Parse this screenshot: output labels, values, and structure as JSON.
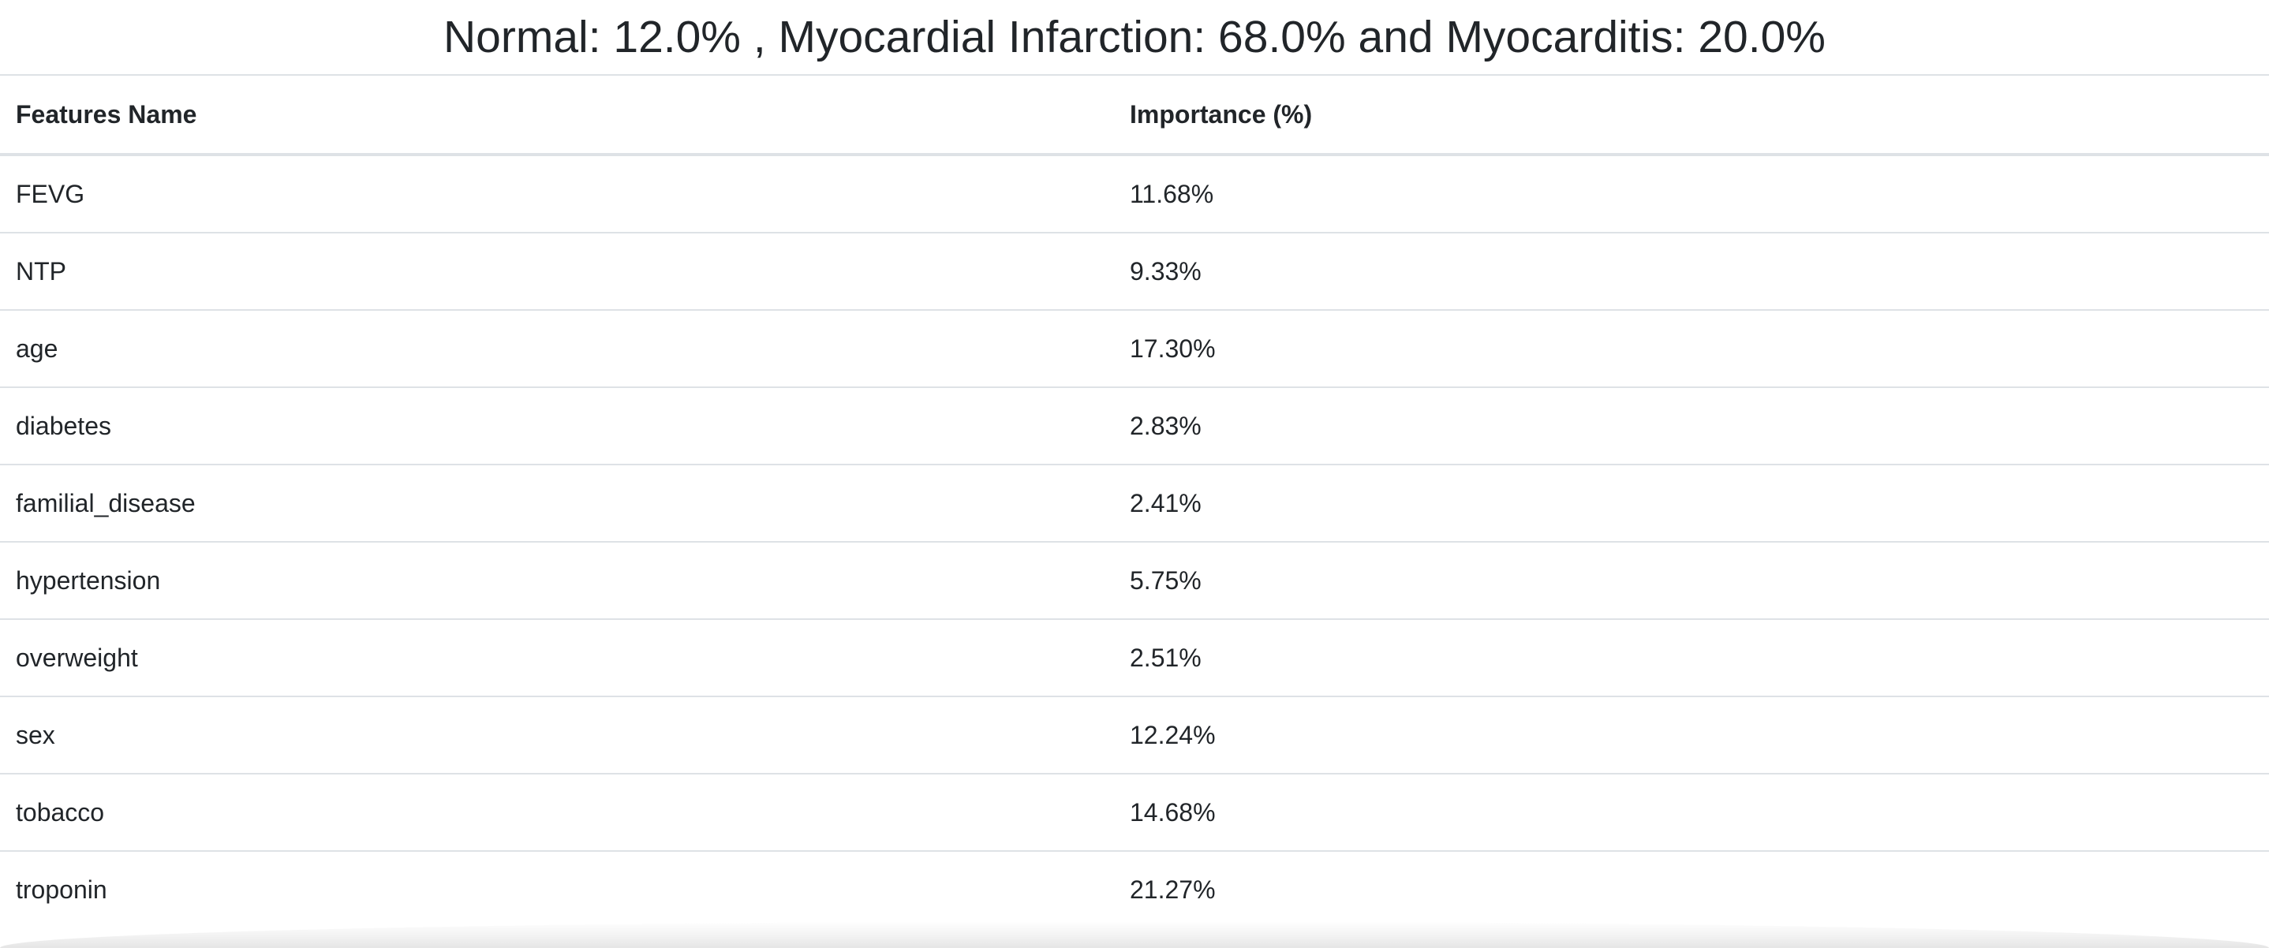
{
  "result_title": "Normal: 12.0% , Myocardial Infarction: 68.0% and Myocarditis: 20.0%",
  "table": {
    "headers": [
      "Features Name",
      "Importance (%)"
    ],
    "rows": [
      {
        "feature": "FEVG",
        "importance": "11.68%"
      },
      {
        "feature": "NTP",
        "importance": "9.33%"
      },
      {
        "feature": "age",
        "importance": "17.30%"
      },
      {
        "feature": "diabetes",
        "importance": "2.83%"
      },
      {
        "feature": "familial_disease",
        "importance": "2.41%"
      },
      {
        "feature": "hypertension",
        "importance": "5.75%"
      },
      {
        "feature": "overweight",
        "importance": "2.51%"
      },
      {
        "feature": "sex",
        "importance": "12.24%"
      },
      {
        "feature": "tobacco",
        "importance": "14.68%"
      },
      {
        "feature": "troponin",
        "importance": "21.27%"
      }
    ]
  }
}
